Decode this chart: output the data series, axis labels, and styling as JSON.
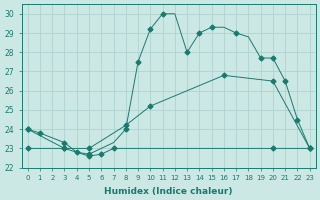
{
  "xlabel": "Humidex (Indice chaleur)",
  "xlim": [
    -0.5,
    23.5
  ],
  "ylim": [
    22,
    30.5
  ],
  "yticks": [
    22,
    23,
    24,
    25,
    26,
    27,
    28,
    29,
    30
  ],
  "xticks": [
    0,
    1,
    2,
    3,
    4,
    5,
    6,
    7,
    8,
    9,
    10,
    11,
    12,
    13,
    14,
    15,
    16,
    17,
    18,
    19,
    20,
    21,
    22,
    23
  ],
  "bg_color": "#cce8e4",
  "grid_color": "#aacfcb",
  "line_color": "#1a7a6e",
  "markersize": 2.5,
  "line1_x": [
    0,
    1,
    3,
    4,
    5,
    6,
    7,
    8,
    9,
    10,
    11,
    12,
    13,
    14,
    15,
    16,
    17,
    18,
    19,
    20,
    21,
    22,
    23
  ],
  "line1_y": [
    24.0,
    23.8,
    23.3,
    22.8,
    22.7,
    23.0,
    23.3,
    24.0,
    27.5,
    29.2,
    30.0,
    30.0,
    28.0,
    29.0,
    29.3,
    29.3,
    29.0,
    28.8,
    27.7,
    27.7,
    26.5,
    24.5,
    23.0
  ],
  "line1_marker_x": [
    0,
    1,
    3,
    5,
    8,
    9,
    10,
    11,
    13,
    14,
    15,
    17,
    19,
    20,
    21,
    22,
    23
  ],
  "line1_marker_y": [
    24.0,
    23.8,
    23.3,
    22.7,
    24.0,
    27.5,
    29.2,
    30.0,
    28.0,
    29.0,
    29.3,
    29.0,
    27.7,
    27.7,
    26.5,
    24.5,
    23.0
  ],
  "line2_x": [
    0,
    3,
    5,
    8,
    10,
    16,
    20,
    23
  ],
  "line2_y": [
    24.0,
    23.0,
    23.0,
    24.2,
    25.2,
    26.8,
    26.5,
    23.0
  ],
  "line2_marker_x": [
    0,
    3,
    5,
    8,
    10,
    16,
    20,
    23
  ],
  "line2_marker_y": [
    24.0,
    23.0,
    23.0,
    24.2,
    25.2,
    26.8,
    26.5,
    23.0
  ],
  "line3_x": [
    0,
    3,
    4,
    5,
    6,
    7,
    8,
    9,
    10,
    11,
    12,
    13,
    14,
    15,
    16,
    17,
    18,
    19,
    20,
    23
  ],
  "line3_y": [
    23.0,
    23.0,
    22.8,
    22.6,
    22.7,
    23.0,
    23.0,
    23.0,
    23.0,
    23.0,
    23.0,
    23.0,
    23.0,
    23.0,
    23.0,
    23.0,
    23.0,
    23.0,
    23.0,
    23.0
  ],
  "line3_marker_x": [
    0,
    3,
    4,
    5,
    6,
    7,
    20,
    23
  ],
  "line3_marker_y": [
    23.0,
    23.0,
    22.8,
    22.6,
    22.7,
    23.0,
    23.0,
    23.0
  ]
}
